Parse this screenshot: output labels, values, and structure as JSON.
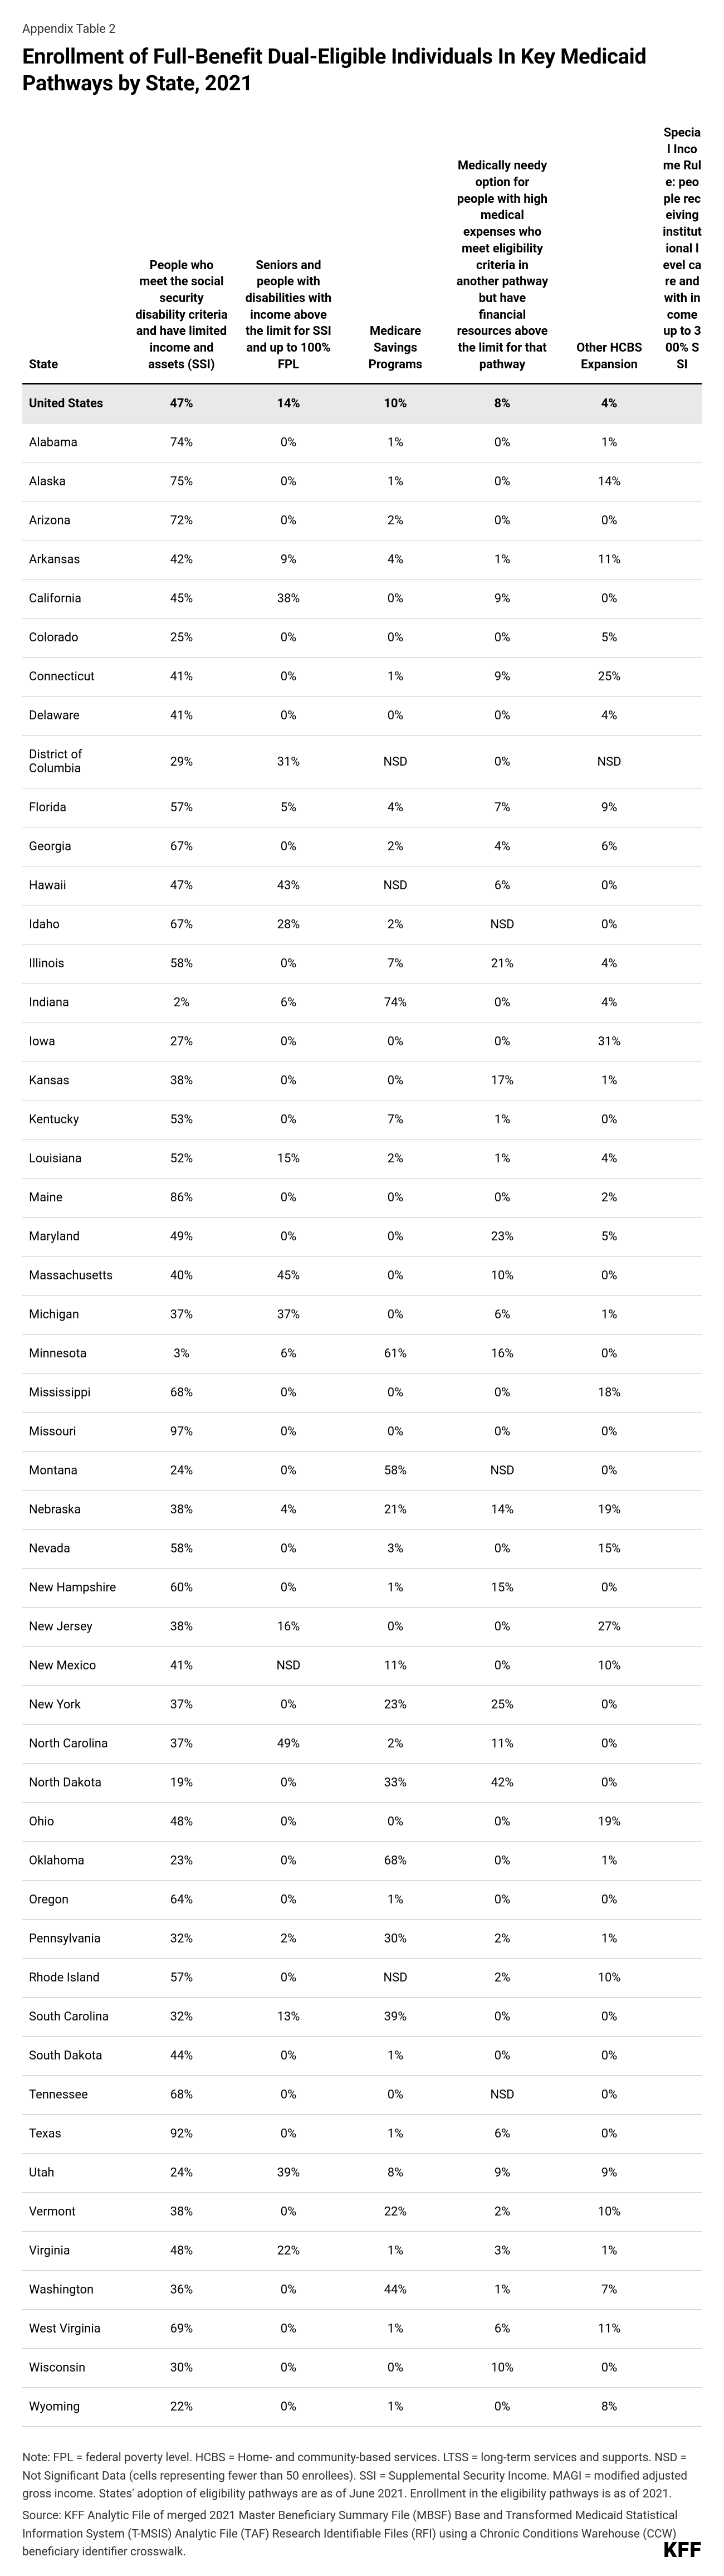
{
  "pre_title": "Appendix Table 2",
  "title": "Enrollment of Full-Benefit Dual-Eligible Individuals In Key Medicaid Pathways by State, 2021",
  "columns": [
    "State",
    "People who meet the social security disability criteria and have limited income and assets (SSI)",
    "Seniors and people with disabilities with income above the limit for SSI and up to 100% FPL",
    "Medicare Savings Programs",
    "Medically needy option for people with high medical expenses who meet eligibility criteria in another pathway but have financial resources above the limit for that pathway",
    "Other HCBS Expansion",
    "Special Income Rule: people receiving institutional level care and with income up to 300% SSI"
  ],
  "total_row": [
    "United States",
    "47%",
    "14%",
    "10%",
    "8%",
    "4%",
    ""
  ],
  "rows": [
    [
      "Alabama",
      "74%",
      "0%",
      "1%",
      "0%",
      "1%",
      ""
    ],
    [
      "Alaska",
      "75%",
      "0%",
      "1%",
      "0%",
      "14%",
      ""
    ],
    [
      "Arizona",
      "72%",
      "0%",
      "2%",
      "0%",
      "0%",
      ""
    ],
    [
      "Arkansas",
      "42%",
      "9%",
      "4%",
      "1%",
      "11%",
      ""
    ],
    [
      "California",
      "45%",
      "38%",
      "0%",
      "9%",
      "0%",
      ""
    ],
    [
      "Colorado",
      "25%",
      "0%",
      "0%",
      "0%",
      "5%",
      ""
    ],
    [
      "Connecticut",
      "41%",
      "0%",
      "1%",
      "9%",
      "25%",
      ""
    ],
    [
      "Delaware",
      "41%",
      "0%",
      "0%",
      "0%",
      "4%",
      ""
    ],
    [
      "District of Columbia",
      "29%",
      "31%",
      "NSD",
      "0%",
      "NSD",
      ""
    ],
    [
      "Florida",
      "57%",
      "5%",
      "4%",
      "7%",
      "9%",
      ""
    ],
    [
      "Georgia",
      "67%",
      "0%",
      "2%",
      "4%",
      "6%",
      ""
    ],
    [
      "Hawaii",
      "47%",
      "43%",
      "NSD",
      "6%",
      "0%",
      ""
    ],
    [
      "Idaho",
      "67%",
      "28%",
      "2%",
      "NSD",
      "0%",
      ""
    ],
    [
      "Illinois",
      "58%",
      "0%",
      "7%",
      "21%",
      "4%",
      ""
    ],
    [
      "Indiana",
      "2%",
      "6%",
      "74%",
      "0%",
      "4%",
      ""
    ],
    [
      "Iowa",
      "27%",
      "0%",
      "0%",
      "0%",
      "31%",
      ""
    ],
    [
      "Kansas",
      "38%",
      "0%",
      "0%",
      "17%",
      "1%",
      ""
    ],
    [
      "Kentucky",
      "53%",
      "0%",
      "7%",
      "1%",
      "0%",
      ""
    ],
    [
      "Louisiana",
      "52%",
      "15%",
      "2%",
      "1%",
      "4%",
      ""
    ],
    [
      "Maine",
      "86%",
      "0%",
      "0%",
      "0%",
      "2%",
      ""
    ],
    [
      "Maryland",
      "49%",
      "0%",
      "0%",
      "23%",
      "5%",
      ""
    ],
    [
      "Massachusetts",
      "40%",
      "45%",
      "0%",
      "10%",
      "0%",
      ""
    ],
    [
      "Michigan",
      "37%",
      "37%",
      "0%",
      "6%",
      "1%",
      ""
    ],
    [
      "Minnesota",
      "3%",
      "6%",
      "61%",
      "16%",
      "0%",
      ""
    ],
    [
      "Mississippi",
      "68%",
      "0%",
      "0%",
      "0%",
      "18%",
      ""
    ],
    [
      "Missouri",
      "97%",
      "0%",
      "0%",
      "0%",
      "0%",
      ""
    ],
    [
      "Montana",
      "24%",
      "0%",
      "58%",
      "NSD",
      "0%",
      ""
    ],
    [
      "Nebraska",
      "38%",
      "4%",
      "21%",
      "14%",
      "19%",
      ""
    ],
    [
      "Nevada",
      "58%",
      "0%",
      "3%",
      "0%",
      "15%",
      ""
    ],
    [
      "New Hampshire",
      "60%",
      "0%",
      "1%",
      "15%",
      "0%",
      ""
    ],
    [
      "New Jersey",
      "38%",
      "16%",
      "0%",
      "0%",
      "27%",
      ""
    ],
    [
      "New Mexico",
      "41%",
      "NSD",
      "11%",
      "0%",
      "10%",
      ""
    ],
    [
      "New York",
      "37%",
      "0%",
      "23%",
      "25%",
      "0%",
      ""
    ],
    [
      "North Carolina",
      "37%",
      "49%",
      "2%",
      "11%",
      "0%",
      ""
    ],
    [
      "North Dakota",
      "19%",
      "0%",
      "33%",
      "42%",
      "0%",
      ""
    ],
    [
      "Ohio",
      "48%",
      "0%",
      "0%",
      "0%",
      "19%",
      ""
    ],
    [
      "Oklahoma",
      "23%",
      "0%",
      "68%",
      "0%",
      "1%",
      ""
    ],
    [
      "Oregon",
      "64%",
      "0%",
      "1%",
      "0%",
      "0%",
      ""
    ],
    [
      "Pennsylvania",
      "32%",
      "2%",
      "30%",
      "2%",
      "1%",
      ""
    ],
    [
      "Rhode Island",
      "57%",
      "0%",
      "NSD",
      "2%",
      "10%",
      ""
    ],
    [
      "South Carolina",
      "32%",
      "13%",
      "39%",
      "0%",
      "0%",
      ""
    ],
    [
      "South Dakota",
      "44%",
      "0%",
      "1%",
      "0%",
      "0%",
      ""
    ],
    [
      "Tennessee",
      "68%",
      "0%",
      "0%",
      "NSD",
      "0%",
      ""
    ],
    [
      "Texas",
      "92%",
      "0%",
      "1%",
      "6%",
      "0%",
      ""
    ],
    [
      "Utah",
      "24%",
      "39%",
      "8%",
      "9%",
      "9%",
      ""
    ],
    [
      "Vermont",
      "38%",
      "0%",
      "22%",
      "2%",
      "10%",
      ""
    ],
    [
      "Virginia",
      "48%",
      "22%",
      "1%",
      "3%",
      "1%",
      ""
    ],
    [
      "Washington",
      "36%",
      "0%",
      "44%",
      "1%",
      "7%",
      ""
    ],
    [
      "West Virginia",
      "69%",
      "0%",
      "1%",
      "6%",
      "11%",
      ""
    ],
    [
      "Wisconsin",
      "30%",
      "0%",
      "0%",
      "10%",
      "0%",
      ""
    ],
    [
      "Wyoming",
      "22%",
      "0%",
      "1%",
      "0%",
      "8%",
      ""
    ]
  ],
  "note": "Note: FPL = federal poverty level. HCBS = Home- and community-based services. LTSS = long-term services and supports. NSD = Not Significant Data (cells representing fewer than 50 enrollees). SSI = Supplemental Security Income. MAGI = modified adjusted gross income. States' adoption of eligibility pathways are as of June 2021. Enrollment in the eligibility pathways is as of 2021.",
  "source": "Source: KFF Analytic File of merged 2021 Master Beneficiary Summary File (MBSF) Base and Transformed Medicaid Statistical Information System (T-MSIS) Analytic File (TAF) Research Identifiable Files (RFI) using a Chronic Conditions Warehouse (CCW) beneficiary identifier crosswalk.",
  "logo": "KFF",
  "style": {
    "bg": "#ffffff",
    "text": "#000000",
    "muted": "#333333",
    "border": "#cccccc",
    "header_border": "#000000",
    "total_bg": "#e9e9ea",
    "title_fontsize": 38,
    "pretitle_fontsize": 22,
    "cell_fontsize": 22,
    "note_fontsize": 21,
    "logo_fontsize": 38
  }
}
